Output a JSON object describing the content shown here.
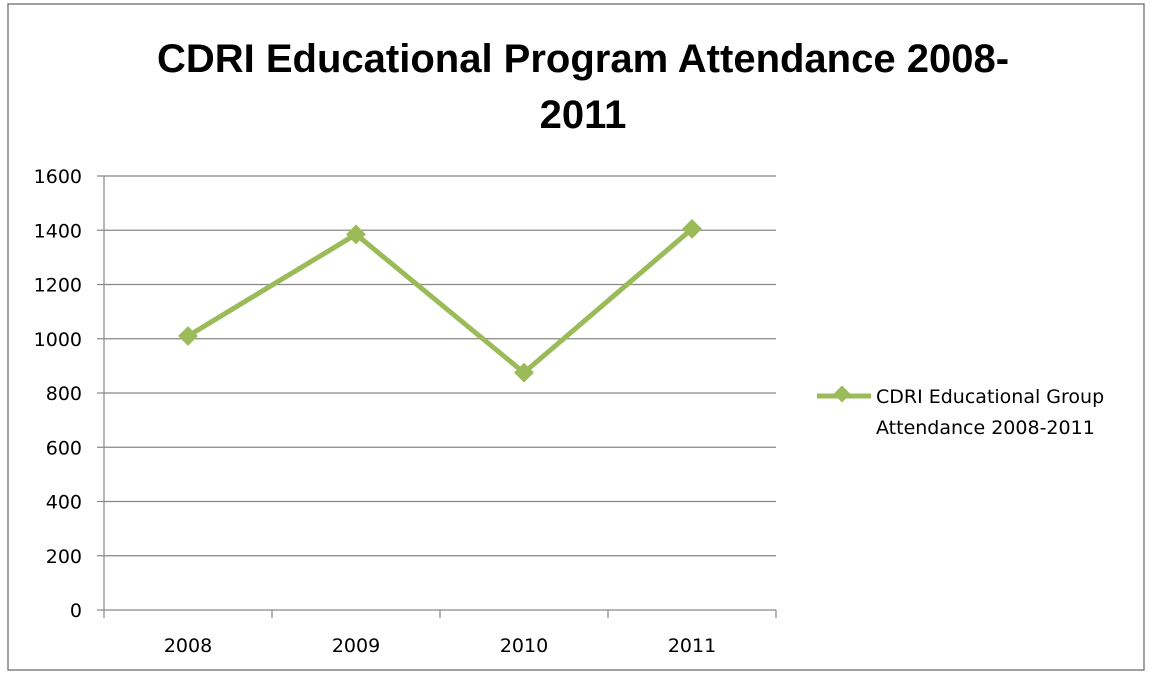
{
  "chart_data": {
    "type": "line",
    "title_lines": [
      "CDRI Educational Program Attendance 2008-",
      "2011"
    ],
    "categories": [
      "2008",
      "2009",
      "2010",
      "2011"
    ],
    "series": [
      {
        "name": "CDRI Educational Group Attendance 2008-2011",
        "legend_lines": [
          "CDRI Educational Group",
          "Attendance 2008-2011"
        ],
        "values": [
          1010,
          1385,
          875,
          1405
        ],
        "color": "#9BBB59"
      }
    ],
    "ylim": [
      0,
      1600
    ],
    "yticks": [
      "0",
      "200",
      "400",
      "600",
      "800",
      "1000",
      "1200",
      "1400",
      "1600"
    ],
    "grid": true,
    "legend_position": "right",
    "xlabel": "",
    "ylabel": ""
  }
}
